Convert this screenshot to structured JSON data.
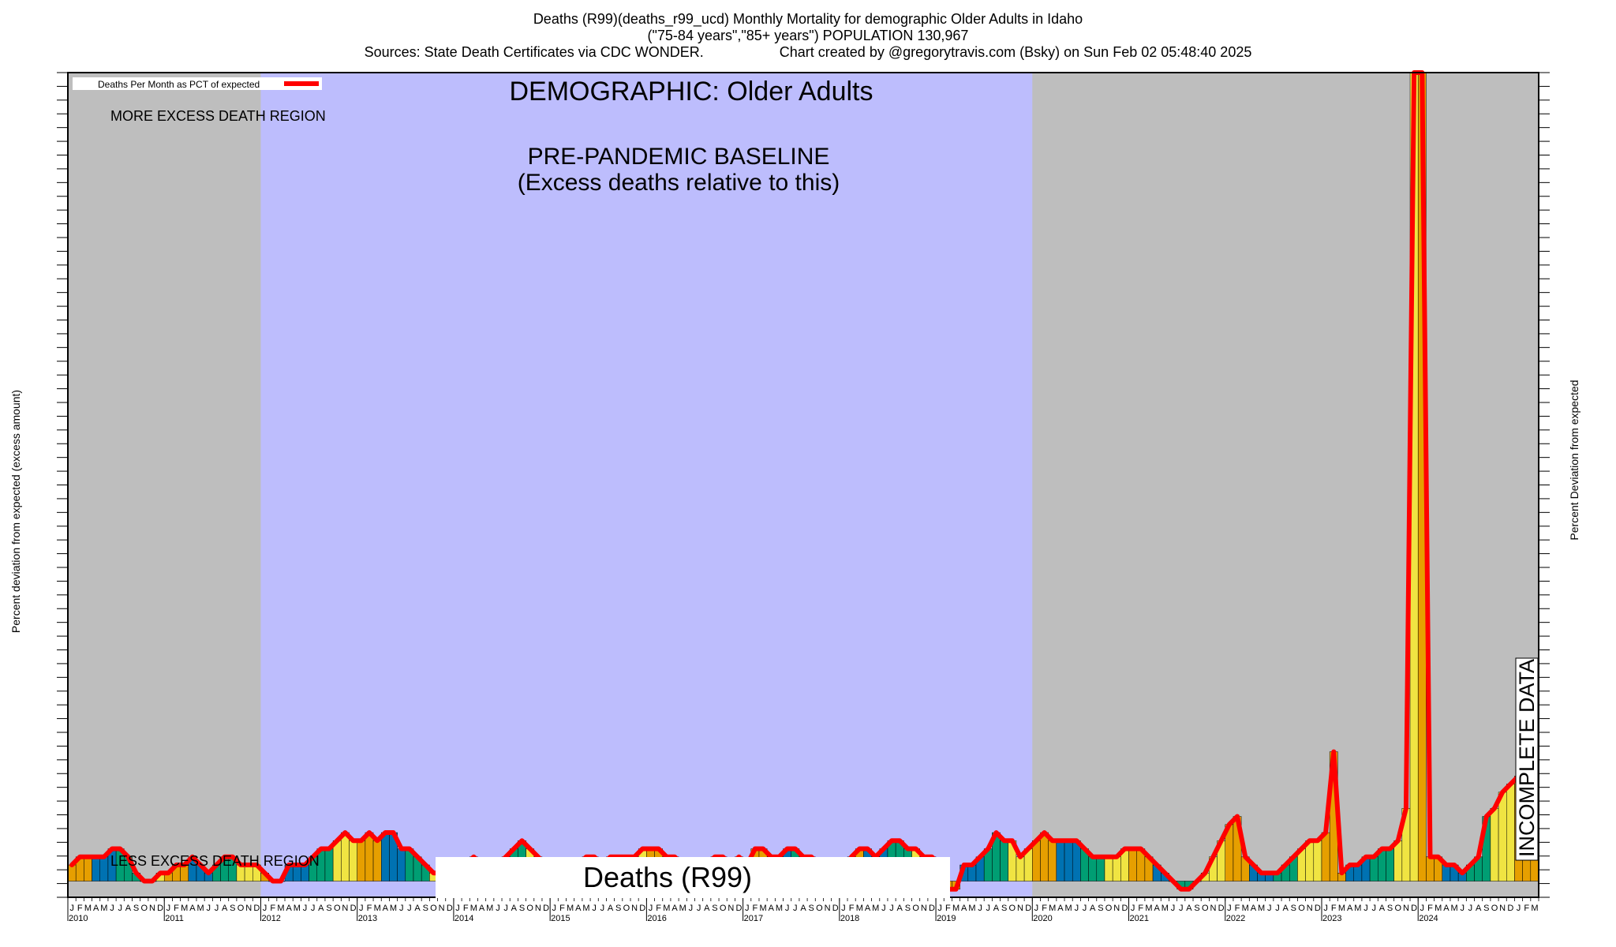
{
  "header": {
    "line1": "Deaths (R99)(deaths_r99_ucd) Monthly Mortality for demographic Older Adults in Idaho",
    "line2": "(\"75-84 years\",\"85+ years\") POPULATION 130,967",
    "line3_left": "Sources: State Death Certificates via CDC WONDER.",
    "line3_right": "Chart created by @gregorytravis.com (Bsky) on Sun Feb 02 05:48:40 2025"
  },
  "colors": {
    "region_gray": "#bebebe",
    "baseline_blue": "#bdbdfd",
    "line_red": "#ff0000",
    "bar_blue": "#0072b2",
    "bar_orange": "#e69f00",
    "bar_green": "#009e73",
    "bar_yellow": "#f0e442"
  },
  "chart_data": {
    "type": "bar",
    "ylabel": "Percent deviation from expected (excess amount)",
    "ylabel_right": "Percent Deviation from expected",
    "legend": {
      "label": "Deaths Per Month as PCT of expected",
      "position": "top-left"
    },
    "annotations": {
      "demographic": "DEMOGRAPHIC: Older Adults",
      "baseline_title": "PRE-PANDEMIC BASELINE",
      "baseline_subtitle": "(Excess deaths relative to this)",
      "more_region": "MORE EXCESS DEATH REGION",
      "less_region": "LESS EXCESS DEATH REGION",
      "incomplete": "INCOMPLETE DATA",
      "cause_box": "Deaths (R99)"
    },
    "x_start": "2010-01",
    "month_letters": [
      "J",
      "F",
      "M",
      "A",
      "M",
      "J",
      "J",
      "A",
      "S",
      "O",
      "N",
      "D"
    ],
    "years": [
      "2010",
      "2011",
      "2012",
      "2013",
      "2014",
      "2015",
      "2016",
      "2017",
      "2018",
      "2019",
      "2020",
      "2021",
      "2022",
      "2023",
      "2024"
    ],
    "baseline_period": [
      "2012-01",
      "2019-12"
    ],
    "ylim": [
      -2,
      100
    ],
    "values": [
      2,
      3,
      3,
      3,
      3,
      4,
      4,
      3,
      1,
      0,
      0,
      1,
      1,
      2,
      2,
      3,
      2,
      1,
      2,
      3,
      3,
      2,
      2,
      2,
      1,
      0,
      0,
      2,
      2,
      2,
      3,
      4,
      4,
      5,
      6,
      5,
      5,
      6,
      5,
      6,
      6,
      4,
      4,
      3,
      2,
      1,
      1,
      1,
      2,
      2,
      3,
      2,
      1,
      2,
      3,
      4,
      5,
      4,
      3,
      2,
      1,
      1,
      1,
      2,
      3,
      3,
      2,
      3,
      3,
      3,
      3,
      4,
      4,
      4,
      3,
      3,
      2,
      2,
      2,
      2,
      3,
      3,
      2,
      3,
      2,
      4,
      4,
      3,
      3,
      4,
      4,
      3,
      3,
      2,
      1,
      1,
      1,
      3,
      4,
      4,
      3,
      4,
      5,
      5,
      4,
      4,
      3,
      3,
      2,
      -1,
      -1,
      2,
      2,
      3,
      4,
      6,
      5,
      5,
      3,
      4,
      5,
      6,
      5,
      5,
      5,
      5,
      4,
      3,
      3,
      3,
      3,
      4,
      4,
      4,
      3,
      2,
      1,
      0,
      -1,
      -1,
      0,
      1,
      3,
      5,
      7,
      8,
      3,
      2,
      1,
      1,
      1,
      2,
      3,
      4,
      5,
      5,
      6,
      16,
      1,
      2,
      2,
      3,
      3,
      4,
      4,
      5,
      9,
      100,
      100,
      3,
      3,
      2,
      2,
      1,
      2,
      3,
      8,
      9,
      11,
      12,
      13,
      13,
      10
    ]
  }
}
